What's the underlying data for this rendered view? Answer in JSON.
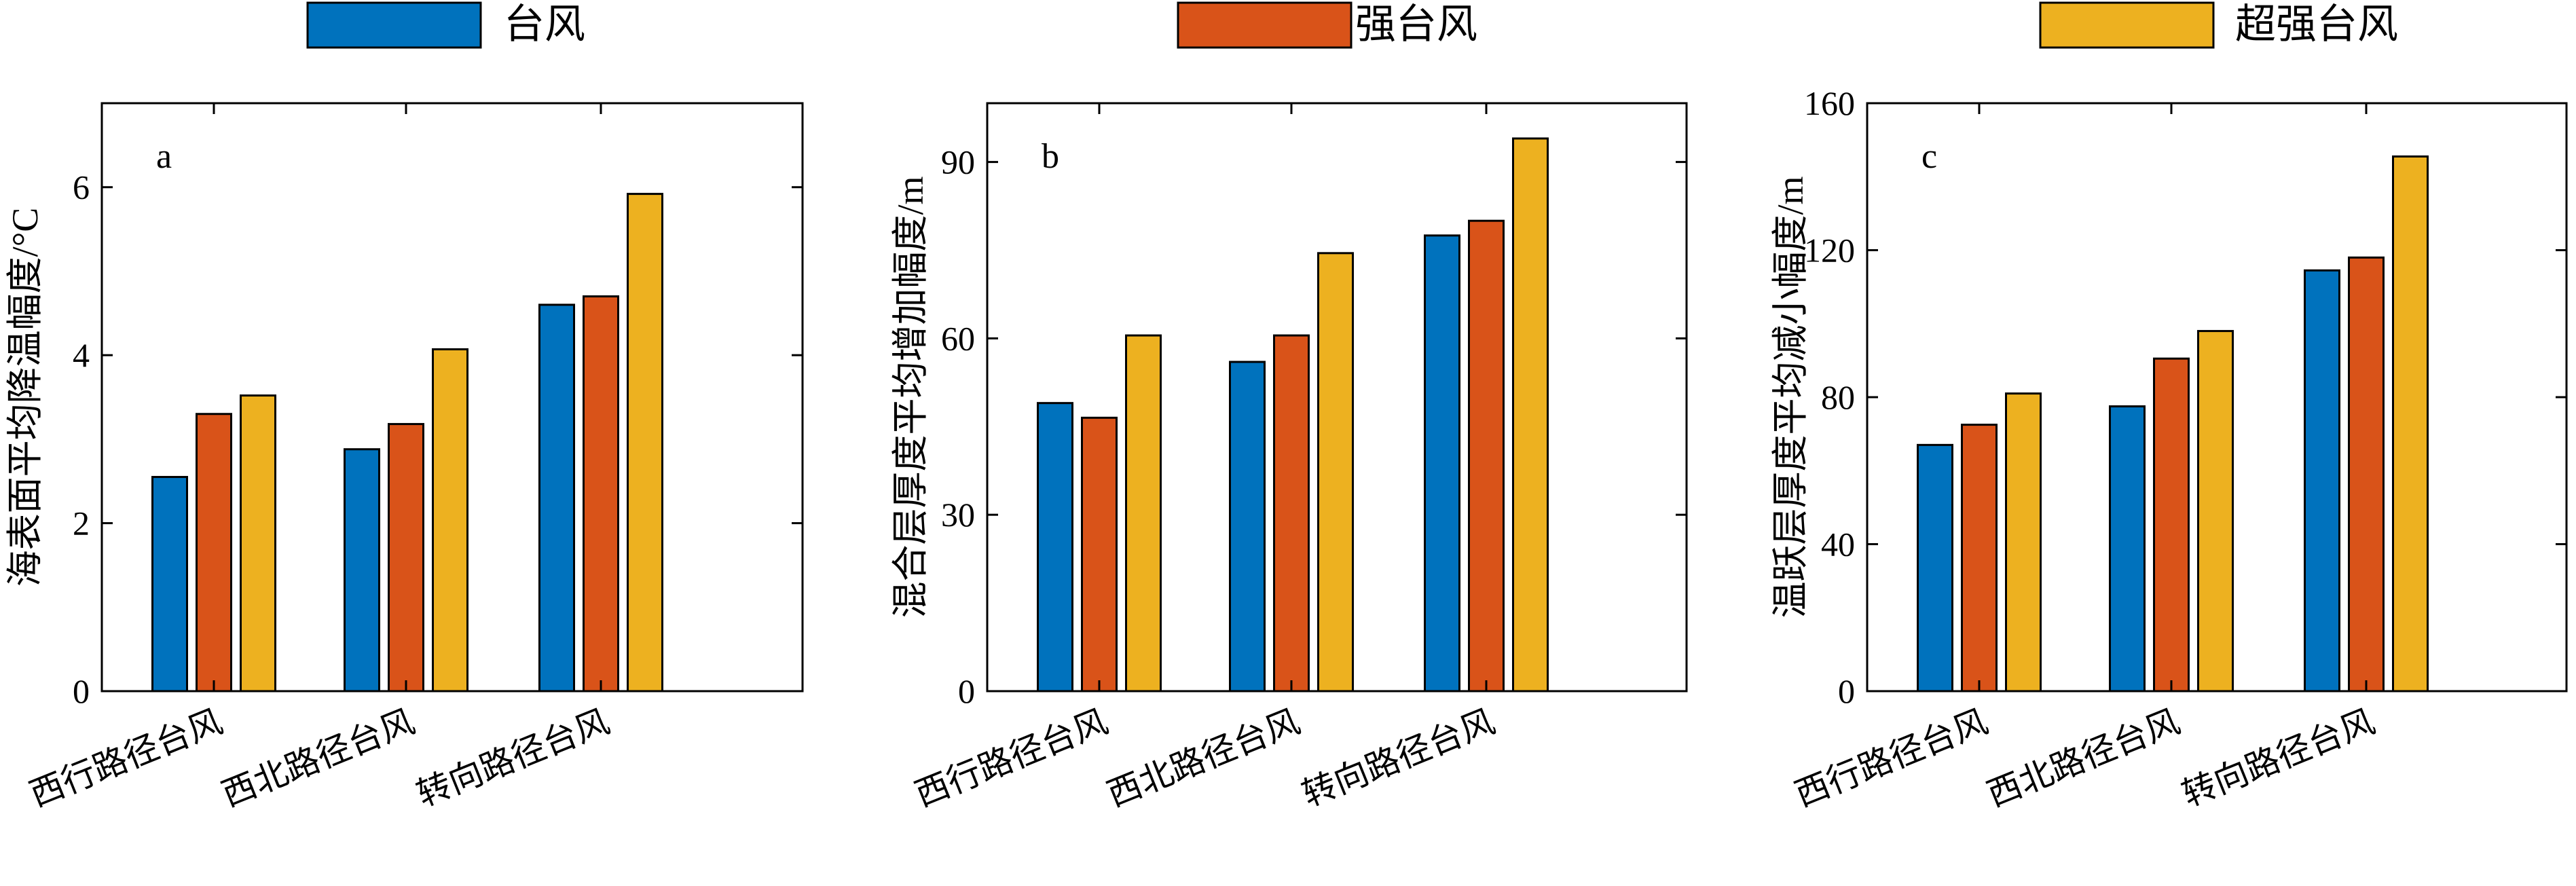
{
  "legend": {
    "items": [
      {
        "label": "台风",
        "color": "#0072BD"
      },
      {
        "label": "强台风",
        "color": "#D95319"
      },
      {
        "label": "超强台风",
        "color": "#EDB120"
      }
    ]
  },
  "chart_data": [
    {
      "type": "bar",
      "panel_label": "a",
      "categories": [
        "西行路径台风",
        "西北路径台风",
        "转向路径台风"
      ],
      "series": [
        {
          "name": "台风",
          "values": [
            2.55,
            2.88,
            4.6
          ]
        },
        {
          "name": "强台风",
          "values": [
            3.3,
            3.18,
            4.7
          ]
        },
        {
          "name": "超强台风",
          "values": [
            3.52,
            4.07,
            5.92
          ]
        }
      ],
      "ylabel": "海表面平均降温幅度/°C",
      "ylim": [
        0,
        7
      ],
      "yticks": [
        0,
        2,
        4,
        6
      ],
      "yticklabels": [
        "0",
        "2",
        "4",
        "6"
      ],
      "grid": false,
      "legend_position": "top"
    },
    {
      "type": "bar",
      "panel_label": "b",
      "categories": [
        "西行路径台风",
        "西北路径台风",
        "转向路径台风"
      ],
      "series": [
        {
          "name": "台风",
          "values": [
            49,
            56,
            77.5
          ]
        },
        {
          "name": "强台风",
          "values": [
            46.5,
            60.5,
            80
          ]
        },
        {
          "name": "超强台风",
          "values": [
            60.5,
            74.5,
            94
          ]
        }
      ],
      "ylabel": "混合层厚度平均增加幅度/m",
      "ylim": [
        0,
        100
      ],
      "yticks": [
        0,
        30,
        60,
        90
      ],
      "yticklabels": [
        "0",
        "30",
        "60",
        "90"
      ],
      "grid": false,
      "legend_position": "top"
    },
    {
      "type": "bar",
      "panel_label": "c",
      "categories": [
        "西行路径台风",
        "西北路径台风",
        "转向路径台风"
      ],
      "series": [
        {
          "name": "台风",
          "values": [
            67,
            77.5,
            114.5
          ]
        },
        {
          "name": "强台风",
          "values": [
            72.5,
            90.5,
            118
          ]
        },
        {
          "name": "超强台风",
          "values": [
            81,
            98,
            145.5
          ]
        }
      ],
      "ylabel": "温跃层厚度平均减小幅度/m",
      "ylim": [
        0,
        160
      ],
      "yticks": [
        0,
        40,
        80,
        120,
        160
      ],
      "yticklabels": [
        "0",
        "40",
        "80",
        "120",
        "160"
      ],
      "grid": false,
      "legend_position": "top"
    }
  ]
}
